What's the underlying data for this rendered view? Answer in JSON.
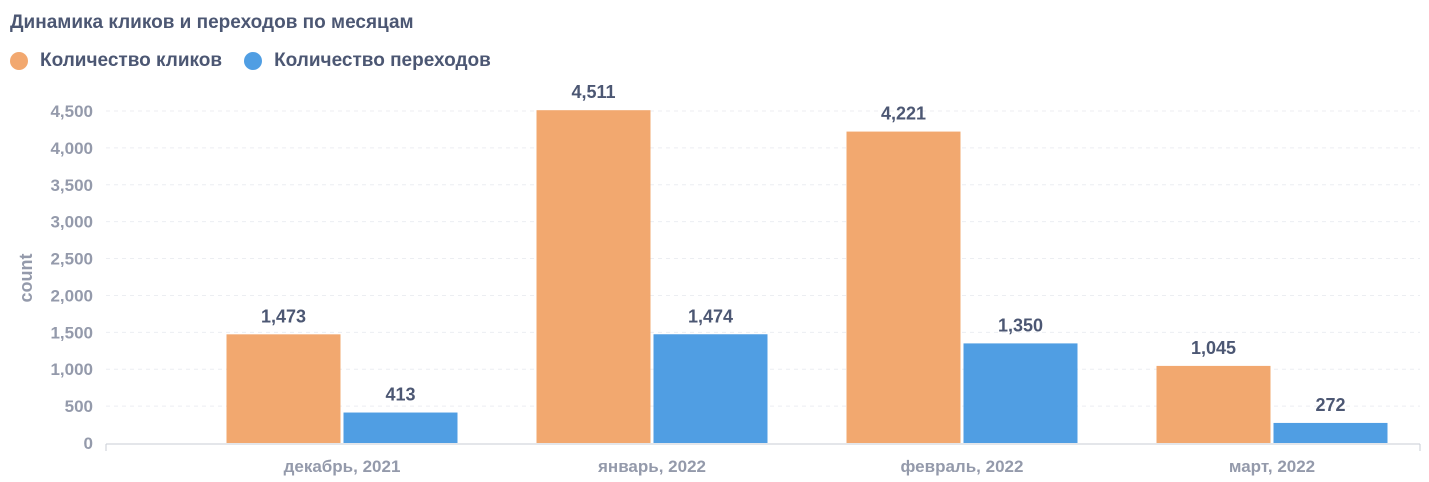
{
  "title": "Динамика кликов и переходов по месяцам",
  "chart_data": {
    "type": "bar",
    "title": "Динамика кликов и переходов по месяцам",
    "categories": [
      "декабрь, 2021",
      "январь, 2022",
      "февраль, 2022",
      "март, 2022"
    ],
    "series": [
      {
        "name": "Количество кликов",
        "color": "#f2a86f",
        "values": [
          1473,
          4511,
          4221,
          1045
        ],
        "labels": [
          "1,473",
          "4,511",
          "4,221",
          "1,045"
        ]
      },
      {
        "name": "Количество переходов",
        "color": "#509ee3",
        "values": [
          413,
          1474,
          1350,
          272
        ],
        "labels": [
          "413",
          "1,474",
          "1,350",
          "272"
        ]
      }
    ],
    "xlabel": "",
    "ylabel": "count",
    "ylim": [
      0,
      4500
    ],
    "yticks": [
      0,
      500,
      1000,
      1500,
      2000,
      2500,
      3000,
      3500,
      4000,
      4500
    ],
    "ytick_labels": [
      "0",
      "500",
      "1,000",
      "1,500",
      "2,000",
      "2,500",
      "3,000",
      "3,500",
      "4,000",
      "4,500"
    ],
    "grid": true,
    "legend_position": "top-left"
  }
}
